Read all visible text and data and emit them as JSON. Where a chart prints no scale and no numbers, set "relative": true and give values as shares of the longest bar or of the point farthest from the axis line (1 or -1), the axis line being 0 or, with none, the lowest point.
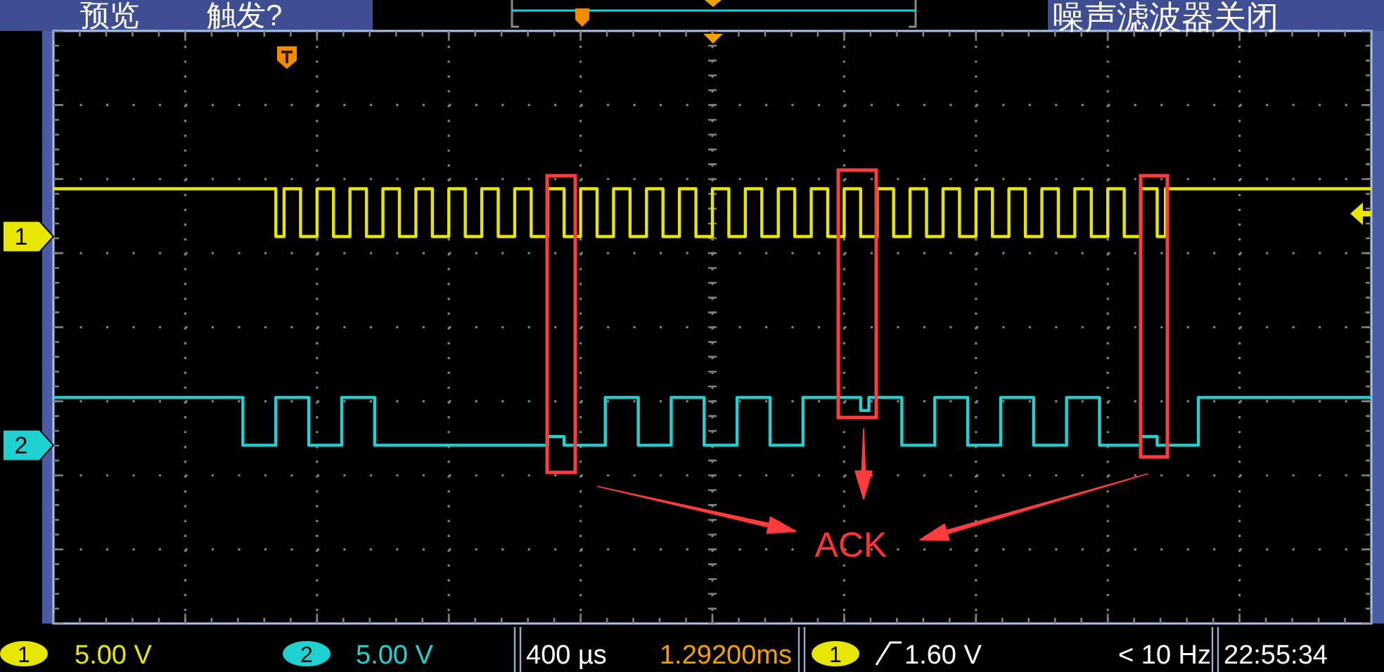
{
  "chart_data": {
    "type": "step",
    "relative": true,
    "grid": true,
    "categories": [
      null,
      null,
      null,
      null,
      null,
      null,
      null,
      null,
      null,
      null,
      null,
      null,
      null,
      null,
      null,
      null,
      null,
      null,
      null,
      null,
      null,
      null,
      null,
      null,
      null,
      null,
      null,
      null,
      null,
      null,
      null,
      null,
      null,
      null,
      null,
      null,
      null,
      null,
      null,
      null,
      null,
      null,
      null,
      null,
      null,
      null,
      null,
      null,
      null,
      null,
      null,
      null,
      null,
      null,
      null,
      null,
      null,
      null,
      null,
      null,
      null,
      null,
      null,
      null,
      null,
      null,
      null,
      null,
      null,
      null,
      null,
      null,
      null,
      null,
      null,
      null,
      null,
      null,
      null,
      null,
      null,
      null,
      null,
      null,
      null,
      null,
      null,
      null,
      null,
      null,
      null,
      null,
      null,
      null,
      null,
      null,
      null,
      null,
      null,
      null,
      null,
      null,
      null,
      null,
      null,
      null,
      null,
      null,
      null,
      null,
      null,
      null,
      null,
      null,
      null,
      null,
      null,
      null,
      null,
      null,
      null,
      null,
      null,
      null,
      null,
      null,
      null,
      null,
      null,
      null,
      null,
      null,
      null,
      null,
      null,
      null,
      null,
      null,
      null,
      null,
      null,
      null,
      null,
      null,
      null,
      null,
      null,
      null,
      null,
      null,
      null,
      null,
      null,
      null,
      null,
      null,
      null,
      null,
      null,
      null
    ],
    "series": [
      {
        "name": "1",
        "color": "#e6e600",
        "values": [
          1,
          1,
          1,
          1,
          1,
          1,
          1,
          1,
          1,
          1,
          1,
          1,
          1,
          1,
          1,
          1,
          1,
          1,
          1,
          1,
          1,
          1,
          1,
          1,
          1,
          1,
          1,
          0.89,
          1,
          1,
          0.89,
          0.89,
          1,
          1,
          0.89,
          0.89,
          1,
          1,
          0.89,
          0.89,
          1,
          1,
          0.89,
          0.89,
          1,
          1,
          0.89,
          0.89,
          1,
          1,
          0.89,
          0.89,
          1,
          1,
          0.89,
          0.89,
          1,
          1,
          0.89,
          0.89,
          1,
          1,
          0.89,
          0.89,
          1,
          1,
          0.89,
          0.89,
          1,
          1,
          0.89,
          0.89,
          1,
          1,
          0.89,
          0.89,
          1,
          1,
          0.89,
          0.89,
          1,
          1,
          0.89,
          0.89,
          1,
          1,
          0.89,
          0.89,
          1,
          1,
          0.89,
          0.89,
          1,
          1,
          0.89,
          0.89,
          1,
          1,
          0.89,
          0.89,
          1,
          1,
          0.89,
          0.89,
          1,
          1,
          0.89,
          0.89,
          1,
          1,
          0.89,
          0.89,
          1,
          1,
          0.89,
          0.89,
          1,
          1,
          0.89,
          0.89,
          1,
          1,
          0.89,
          0.89,
          1,
          1,
          0.89,
          0.89,
          1,
          1,
          0.89,
          0.89,
          1,
          1,
          0.89,
          1,
          1,
          1,
          1,
          1,
          1,
          1,
          1,
          1,
          1,
          1,
          1,
          1,
          1,
          1,
          1,
          1,
          1,
          1,
          1,
          1,
          1,
          1,
          1,
          1
        ]
      },
      {
        "name": "2",
        "color": "#1ed2d2",
        "values": [
          0.52,
          0.52,
          0.52,
          0.52,
          0.52,
          0.52,
          0.52,
          0.52,
          0.52,
          0.52,
          0.52,
          0.52,
          0.52,
          0.52,
          0.52,
          0.52,
          0.52,
          0.52,
          0.52,
          0.52,
          0.52,
          0.52,
          0.52,
          0.41,
          0.41,
          0.41,
          0.41,
          0.52,
          0.52,
          0.52,
          0.52,
          0.41,
          0.41,
          0.41,
          0.41,
          0.52,
          0.52,
          0.52,
          0.52,
          0.41,
          0.41,
          0.41,
          0.41,
          0.41,
          0.41,
          0.41,
          0.41,
          0.41,
          0.41,
          0.41,
          0.41,
          0.41,
          0.41,
          0.41,
          0.41,
          0.41,
          0.41,
          0.41,
          0.41,
          0.41,
          0.43,
          0.43,
          0.41,
          0.41,
          0.41,
          0.41,
          0.41,
          0.52,
          0.52,
          0.52,
          0.52,
          0.41,
          0.41,
          0.41,
          0.41,
          0.52,
          0.52,
          0.52,
          0.52,
          0.41,
          0.41,
          0.41,
          0.41,
          0.52,
          0.52,
          0.52,
          0.52,
          0.41,
          0.41,
          0.41,
          0.41,
          0.52,
          0.52,
          0.52,
          0.52,
          0.52,
          0.52,
          0.52,
          0.49,
          0.52,
          0.52,
          0.52,
          0.52,
          0.41,
          0.41,
          0.41,
          0.41,
          0.52,
          0.52,
          0.52,
          0.52,
          0.41,
          0.41,
          0.41,
          0.41,
          0.52,
          0.52,
          0.52,
          0.52,
          0.41,
          0.41,
          0.41,
          0.41,
          0.52,
          0.52,
          0.52,
          0.52,
          0.41,
          0.41,
          0.41,
          0.41,
          0.41,
          0.43,
          0.43,
          0.41,
          0.41,
          0.41,
          0.41,
          0.41,
          0.52,
          0.52,
          0.52,
          0.52,
          0.52,
          0.52,
          0.52,
          0.52,
          0.52,
          0.52,
          0.52,
          0.52,
          0.52,
          0.52,
          0.52,
          0.52,
          0.52,
          0.52,
          0.52,
          0.52,
          0.52
        ]
      }
    ],
    "annotations": [
      "预览",
      "触发?",
      "噪声滤波器关闭",
      "5.00 V",
      "5.00 V",
      "400 µs",
      "1.29200ms",
      "1.60 V",
      "< 10 Hz",
      "22:55:34",
      "ACK"
    ]
  }
}
